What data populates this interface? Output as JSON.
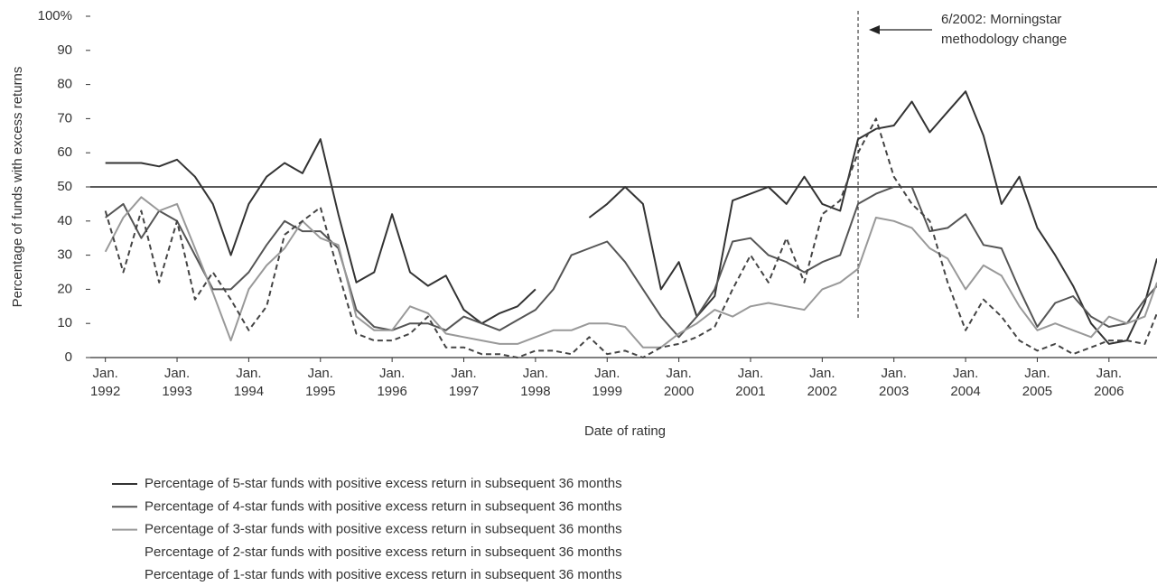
{
  "chart_data": {
    "type": "line",
    "ylabel": "Percentage of funds with excess returns",
    "xlabel": "Date of rating",
    "annotation": [
      "6/2002: Morningstar",
      "methodology change"
    ],
    "annotation_x": 2002.5,
    "reference_y": 50,
    "xlim": [
      1991.79,
      2006.67
    ],
    "ylim": [
      0,
      100
    ],
    "yticks": [
      0,
      10,
      20,
      30,
      40,
      50,
      60,
      70,
      80,
      90,
      {
        "value": 100,
        "label": "100%"
      }
    ],
    "xticks": [
      {
        "value": 1992,
        "label": "Jan. 1992"
      },
      {
        "value": 1993,
        "label": "Jan. 1993"
      },
      {
        "value": 1994,
        "label": "Jan. 1994"
      },
      {
        "value": 1995,
        "label": "Jan. 1995"
      },
      {
        "value": 1996,
        "label": "Jan. 1996"
      },
      {
        "value": 1997,
        "label": "Jan. 1997"
      },
      {
        "value": 1998,
        "label": "Jan. 1998"
      },
      {
        "value": 1999,
        "label": "Jan. 1999"
      },
      {
        "value": 2000,
        "label": "Jan. 2000"
      },
      {
        "value": 2001,
        "label": "Jan. 2001"
      },
      {
        "value": 2002,
        "label": "Jan. 2002"
      },
      {
        "value": 2003,
        "label": "Jan. 2003"
      },
      {
        "value": 2004,
        "label": "Jan. 2004"
      },
      {
        "value": 2005,
        "label": "Jan. 2005"
      },
      {
        "value": 2006,
        "label": "Jan. 2006"
      }
    ],
    "x": [
      1992,
      1992.25,
      1992.5,
      1992.75,
      1993,
      1993.25,
      1993.5,
      1993.75,
      1994,
      1994.25,
      1994.5,
      1994.75,
      1995,
      1995.25,
      1995.5,
      1995.75,
      1996,
      1996.25,
      1996.5,
      1996.75,
      1997,
      1997.25,
      1997.5,
      1997.75,
      1998,
      1998.25,
      1998.5,
      1998.75,
      1999,
      1999.25,
      1999.5,
      1999.75,
      2000,
      2000.25,
      2000.5,
      2000.75,
      2001,
      2001.25,
      2001.5,
      2001.75,
      2002,
      2002.25,
      2002.5,
      2002.75,
      2003,
      2003.25,
      2003.5,
      2003.75,
      2004,
      2004.25,
      2004.5,
      2004.75,
      2005,
      2005.25,
      2005.5,
      2005.75,
      2006,
      2006.25,
      2006.5,
      2006.67
    ],
    "series": [
      {
        "name": "Percentage of 5-star funds with positive excess return in subsequent 36 months",
        "color": "#333333",
        "dashed": false,
        "legend_swatch": true,
        "values": [
          57,
          57,
          57,
          56,
          58,
          53,
          45,
          30,
          45,
          53,
          57,
          54,
          64,
          42,
          22,
          25,
          42,
          25,
          21,
          24,
          14,
          10,
          13,
          15,
          20,
          null,
          null,
          41,
          45,
          50,
          45,
          20,
          28,
          12,
          18,
          46,
          48,
          50,
          45,
          53,
          45,
          43,
          64,
          67,
          68,
          75,
          66,
          72,
          78,
          65,
          45,
          53,
          38,
          30,
          21,
          10,
          4,
          5,
          16,
          29
        ]
      },
      {
        "name": "Percentage of 4-star funds with positive excess return in subsequent 36 months",
        "color": "#555555",
        "dashed": false,
        "legend_swatch": true,
        "values": [
          41,
          45,
          35,
          43,
          40,
          30,
          20,
          20,
          25,
          33,
          40,
          37,
          37,
          32,
          14,
          9,
          8,
          10,
          10,
          8,
          12,
          10,
          8,
          11,
          14,
          20,
          30,
          32,
          34,
          28,
          20,
          12,
          6,
          12,
          20,
          34,
          35,
          30,
          28,
          25,
          28,
          30,
          45,
          48,
          50,
          50,
          37,
          38,
          42,
          33,
          32,
          20,
          9,
          16,
          18,
          12,
          9,
          10,
          17,
          21
        ]
      },
      {
        "name": "Percentage of 3-star funds with positive excess return in subsequent 36 months",
        "color": "#999999",
        "dashed": false,
        "legend_swatch": true,
        "values": [
          31,
          41,
          47,
          43,
          45,
          32,
          19,
          5,
          20,
          27,
          32,
          40,
          35,
          33,
          12,
          8,
          8,
          15,
          13,
          7,
          6,
          5,
          4,
          4,
          6,
          8,
          8,
          10,
          10,
          9,
          3,
          3,
          7,
          10,
          14,
          12,
          15,
          16,
          15,
          14,
          20,
          22,
          26,
          41,
          40,
          38,
          32,
          29,
          20,
          27,
          24,
          15,
          8,
          10,
          8,
          6,
          12,
          10,
          12,
          22
        ]
      },
      {
        "name": "Percentage of 2-star funds with positive excess return in subsequent 36 months",
        "color": "#444444",
        "dashed": true,
        "legend_swatch": false,
        "values": [
          43,
          25,
          43,
          22,
          40,
          17,
          25,
          17,
          8,
          15,
          36,
          40,
          44,
          25,
          7,
          5,
          5,
          7,
          12,
          3,
          3,
          1,
          1,
          0,
          2,
          2,
          1,
          6,
          1,
          2,
          0,
          3,
          4,
          6,
          9,
          20,
          30,
          22,
          35,
          22,
          42,
          46,
          60,
          70,
          53,
          45,
          40,
          22,
          8,
          17,
          12,
          5,
          2,
          4,
          1,
          3,
          5,
          5,
          4,
          13
        ]
      },
      {
        "name": "Percentage of 1-star funds with positive excess return in subsequent 36 months",
        "color": "#444444",
        "dashed": false,
        "legend_swatch": false,
        "values": [
          null,
          null,
          null,
          null,
          null,
          null,
          null,
          null,
          null,
          null,
          null,
          null,
          null,
          null,
          null,
          null,
          null,
          null,
          null,
          null,
          null,
          null,
          null,
          null,
          null,
          null,
          null,
          null,
          null,
          null,
          null,
          null,
          null,
          null,
          null,
          null,
          null,
          null,
          null,
          null,
          null,
          null,
          null,
          null,
          null,
          null,
          null,
          null,
          null,
          null,
          null,
          null,
          null,
          null,
          null,
          null,
          null,
          null,
          null,
          null
        ]
      }
    ]
  }
}
